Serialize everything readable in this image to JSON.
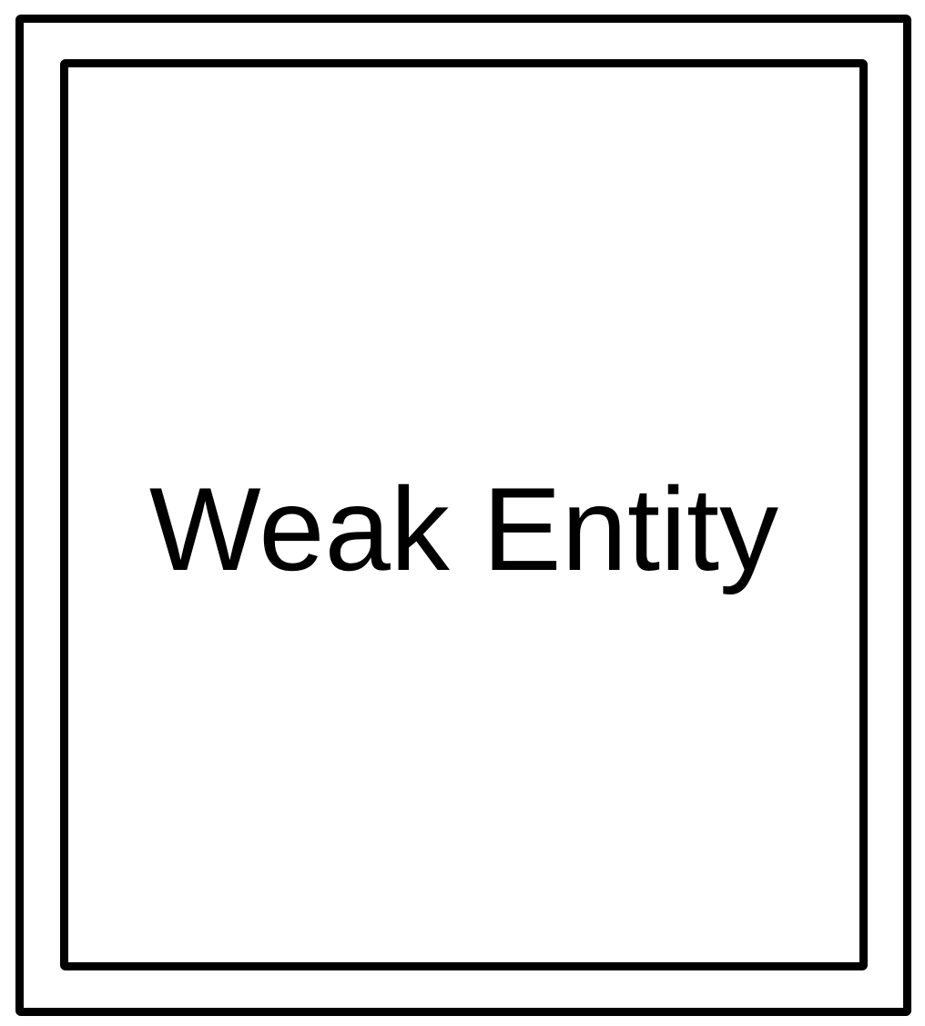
{
  "entity": {
    "label": "Weak Entity"
  },
  "colors": {
    "stroke": "#000000",
    "fill": "#ffffff"
  }
}
